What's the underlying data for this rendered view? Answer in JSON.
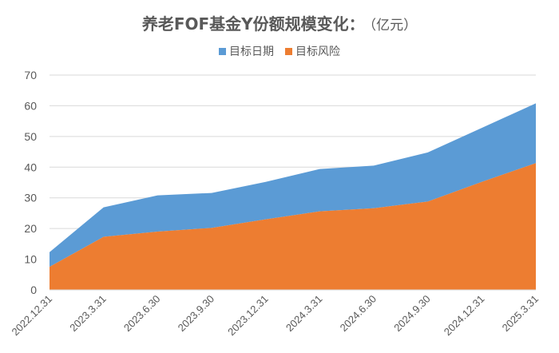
{
  "title": {
    "main": "养老FOF基金Y份额规模变化：",
    "unit": "（亿元）"
  },
  "colors": {
    "target_date": "#5B9BD5",
    "target_risk": "#ED7D31",
    "gridline": "#D9D9D9",
    "axis_text": "#595959"
  },
  "chart_data": {
    "type": "area",
    "stacked": true,
    "title": "养老FOF基金Y份额规模变化：（亿元）",
    "categories": [
      "2022.12.31",
      "2023.3.31",
      "2023.6.30",
      "2023.9.30",
      "2023.12.31",
      "2024.3.31",
      "2024.6.30",
      "2024.9.30",
      "2024.12.31",
      "2025.3.31"
    ],
    "series": [
      {
        "name": "目标日期",
        "values": [
          4.8,
          9.6,
          11.8,
          11.4,
          12.2,
          13.8,
          13.9,
          16.0,
          17.6,
          19.5
        ]
      },
      {
        "name": "目标风险",
        "values": [
          7.5,
          17.3,
          19.0,
          20.2,
          23.0,
          25.6,
          26.6,
          28.8,
          35.2,
          41.3
        ]
      }
    ],
    "ylim": [
      0,
      70
    ],
    "yticks": [
      0,
      10,
      20,
      30,
      40,
      50,
      60,
      70
    ],
    "grid": true,
    "legend": "top"
  }
}
